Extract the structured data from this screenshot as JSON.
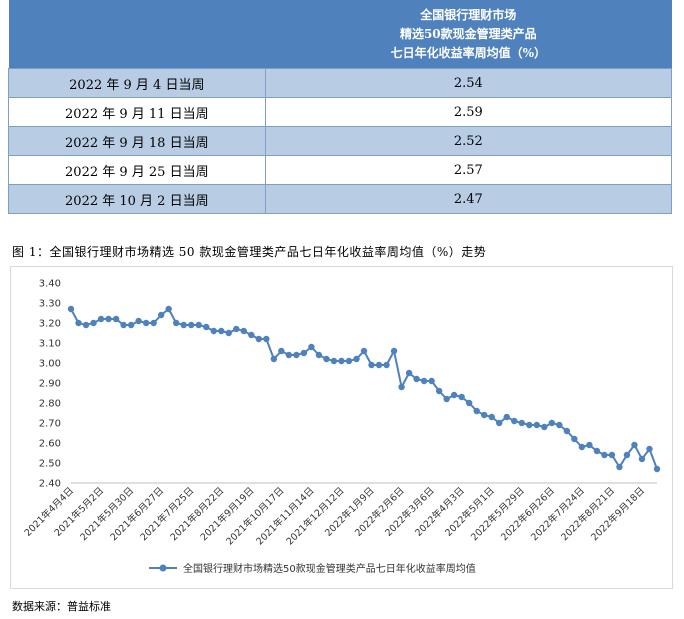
{
  "table": {
    "header_lines": [
      "全国银行理财市场",
      "精选50款现金管理类产品",
      "七日年化收益率周均值（%）"
    ],
    "rows": [
      {
        "week": "2022 年 9 月 4 日当周",
        "value": "2.54"
      },
      {
        "week": "2022 年 9 月 11 日当周",
        "value": "2.59"
      },
      {
        "week": "2022 年 9 月 18 日当周",
        "value": "2.52"
      },
      {
        "week": "2022 年 9 月 25 日当周",
        "value": "2.57"
      },
      {
        "week": "2022 年 10 月 2 日当周",
        "value": "2.47"
      }
    ]
  },
  "figure_caption": "图 1：全国银行理财市场精选 50 款现金管理类产品七日年化收益率周均值（%）走势",
  "source": "数据来源：普益标准",
  "chart_data": {
    "type": "line",
    "title": "",
    "xlabel": "",
    "ylabel": "",
    "ylim": [
      2.4,
      3.4
    ],
    "yticks": [
      "3.40",
      "3.30",
      "3.20",
      "3.10",
      "3.00",
      "2.90",
      "2.80",
      "2.70",
      "2.60",
      "2.50",
      "2.40"
    ],
    "grid": false,
    "legend": "bottom",
    "line_color": "#4f81bd",
    "x_tick_labels": [
      "2021年4月4日",
      "2021年5月2日",
      "2021年5月30日",
      "2021年6月27日",
      "2021年7月25日",
      "2021年8月22日",
      "2021年9月19日",
      "2021年10月17日",
      "2021年11月14日",
      "2021年12月12日",
      "2022年1月9日",
      "2022年2月6日",
      "2022年3月6日",
      "2022年4月3日",
      "2022年5月1日",
      "2022年5月29日",
      "2022年6月26日",
      "2022年7月24日",
      "2022年8月21日",
      "2022年9月18日"
    ],
    "series": [
      {
        "name": "全国银行理财市场精选50款现金管理类产品七日年化收益率周均值",
        "values": [
          3.27,
          3.2,
          3.19,
          3.2,
          3.22,
          3.22,
          3.22,
          3.19,
          3.19,
          3.21,
          3.2,
          3.2,
          3.24,
          3.27,
          3.2,
          3.19,
          3.19,
          3.19,
          3.18,
          3.16,
          3.16,
          3.15,
          3.17,
          3.16,
          3.14,
          3.12,
          3.12,
          3.02,
          3.06,
          3.04,
          3.04,
          3.05,
          3.08,
          3.04,
          3.02,
          3.01,
          3.01,
          3.01,
          3.02,
          3.06,
          2.99,
          2.99,
          2.99,
          3.06,
          2.88,
          2.95,
          2.92,
          2.91,
          2.91,
          2.86,
          2.82,
          2.84,
          2.83,
          2.8,
          2.76,
          2.74,
          2.73,
          2.7,
          2.73,
          2.71,
          2.7,
          2.69,
          2.69,
          2.68,
          2.7,
          2.69,
          2.66,
          2.62,
          2.58,
          2.59,
          2.56,
          2.54,
          2.54,
          2.48,
          2.54,
          2.59,
          2.52,
          2.57,
          2.47
        ]
      }
    ]
  }
}
